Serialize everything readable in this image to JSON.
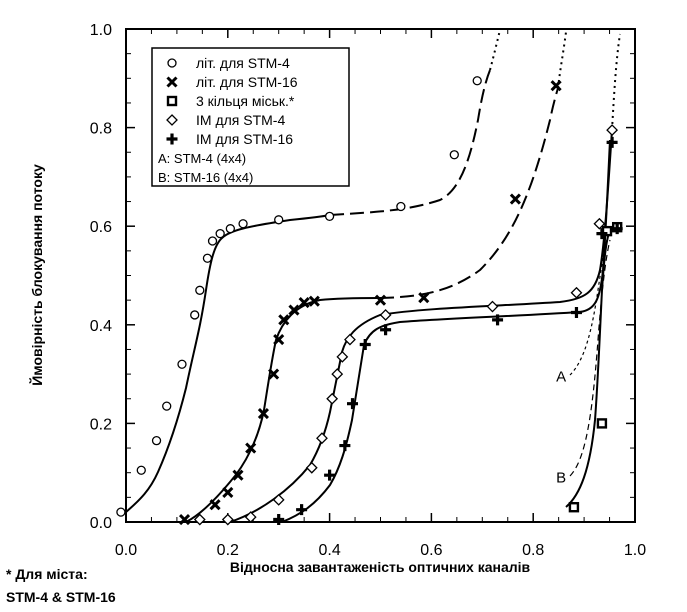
{
  "chart_data": {
    "type": "line",
    "title": "",
    "xlabel": "Відносна завантаженість оптичних каналів",
    "ylabel": "Ймовірність блокування потоку",
    "xlim": [
      0.0,
      1.0
    ],
    "ylim": [
      0.0,
      1.0
    ],
    "x_ticks": [
      0.0,
      0.2,
      0.4,
      0.6,
      0.8,
      1.0
    ],
    "x_tick_labels": [
      "0.0",
      "0.2",
      "0.4",
      "0.6",
      "0.8",
      "1.0"
    ],
    "y_ticks": [
      0.0,
      0.2,
      0.4,
      0.6,
      0.8,
      1.0
    ],
    "y_tick_labels": [
      "0.0",
      "0.2",
      "0.4",
      "0.6",
      "0.8",
      "1.0"
    ],
    "grid": false,
    "legend_position": "top-left",
    "legend": [
      {
        "marker": "circle",
        "label": "літ. для STM-4"
      },
      {
        "marker": "x",
        "label": "літ. для STM-16"
      },
      {
        "marker": "square",
        "label": "3 кільця міськ.*"
      },
      {
        "marker": "diamond",
        "label": "ІМ для STM-4"
      },
      {
        "marker": "plus",
        "label": "ІМ для STM-16"
      },
      {
        "marker": "none",
        "label": "A: STM-4 (4x4)"
      },
      {
        "marker": "none",
        "label": "B: STM-16 (4x4)"
      }
    ],
    "series": [
      {
        "marker": "circle",
        "points": [
          [
            -0.01,
            0.02
          ],
          [
            0.03,
            0.105
          ],
          [
            0.06,
            0.165
          ],
          [
            0.08,
            0.235
          ],
          [
            0.11,
            0.32
          ],
          [
            0.135,
            0.42
          ],
          [
            0.145,
            0.47
          ],
          [
            0.16,
            0.535
          ],
          [
            0.17,
            0.57
          ],
          [
            0.185,
            0.585
          ],
          [
            0.205,
            0.595
          ],
          [
            0.23,
            0.605
          ],
          [
            0.3,
            0.613
          ],
          [
            0.4,
            0.62
          ],
          [
            0.54,
            0.64
          ],
          [
            0.645,
            0.745
          ],
          [
            0.69,
            0.895
          ]
        ]
      },
      {
        "marker": "x",
        "points": [
          [
            0.115,
            0.005
          ],
          [
            0.175,
            0.035
          ],
          [
            0.2,
            0.06
          ],
          [
            0.22,
            0.095
          ],
          [
            0.245,
            0.15
          ],
          [
            0.27,
            0.22
          ],
          [
            0.29,
            0.3
          ],
          [
            0.3,
            0.37
          ],
          [
            0.31,
            0.41
          ],
          [
            0.33,
            0.43
          ],
          [
            0.35,
            0.445
          ],
          [
            0.37,
            0.448
          ],
          [
            0.5,
            0.45
          ],
          [
            0.585,
            0.455
          ],
          [
            0.765,
            0.655
          ],
          [
            0.845,
            0.885
          ]
        ]
      },
      {
        "marker": "square",
        "points": [
          [
            0.88,
            0.03
          ],
          [
            0.935,
            0.2
          ],
          [
            0.945,
            0.59
          ],
          [
            0.965,
            0.598
          ]
        ]
      },
      {
        "marker": "diamond",
        "points": [
          [
            0.145,
            0.005
          ],
          [
            0.2,
            0.005
          ],
          [
            0.245,
            0.01
          ],
          [
            0.3,
            0.045
          ],
          [
            0.365,
            0.11
          ],
          [
            0.385,
            0.17
          ],
          [
            0.405,
            0.25
          ],
          [
            0.415,
            0.3
          ],
          [
            0.425,
            0.335
          ],
          [
            0.44,
            0.37
          ],
          [
            0.51,
            0.42
          ],
          [
            0.72,
            0.437
          ],
          [
            0.885,
            0.465
          ],
          [
            0.93,
            0.605
          ],
          [
            0.955,
            0.795
          ]
        ]
      },
      {
        "marker": "plus",
        "points": [
          [
            0.3,
            0.005
          ],
          [
            0.345,
            0.025
          ],
          [
            0.4,
            0.095
          ],
          [
            0.43,
            0.155
          ],
          [
            0.445,
            0.24
          ],
          [
            0.47,
            0.36
          ],
          [
            0.51,
            0.39
          ],
          [
            0.73,
            0.41
          ],
          [
            0.885,
            0.425
          ],
          [
            0.935,
            0.585
          ],
          [
            0.955,
            0.77
          ],
          [
            0.965,
            0.595
          ]
        ]
      }
    ],
    "annotations": [
      {
        "label": "A",
        "x": 0.855,
        "y": 0.295
      },
      {
        "label": "B",
        "x": 0.855,
        "y": 0.09
      }
    ]
  },
  "footnote": {
    "line1": "* Для міста:",
    "line2": "STM-4 & STM-16"
  }
}
